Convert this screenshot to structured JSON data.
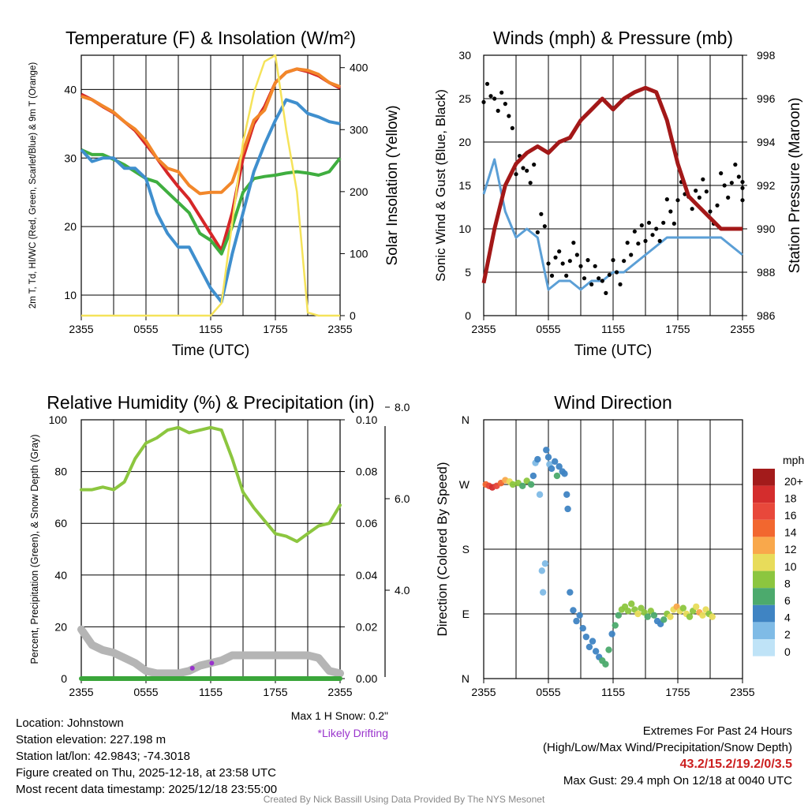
{
  "colors": {
    "temperature": "#d62728",
    "dewpoint": "#3fae3f",
    "windchill": "#3f8fce",
    "t9m": "#f2872a",
    "insolation": "#f5e35a",
    "wind": "#5b9fd6",
    "gust": "#000000",
    "pressure": "#a31818",
    "rh": "#8cc63f",
    "precip": "#3aa63a",
    "snow": "#b5b5b5",
    "drift": "#9933cc"
  },
  "x_ticks": [
    "2355",
    "0555",
    "1155",
    "1755",
    "2355"
  ],
  "chart_data": [
    {
      "id": "temp",
      "type": "line",
      "title": "Temperature (F) & Insolation (W/m²)",
      "xlabel": "Time (UTC)",
      "ylabel": "2m T, Td, HI/WC (Red, Green, Scarlet/Blue) & 9m T (Orange)",
      "ylabel2": "Solar Insolation (Yellow)",
      "x_ticks": [
        "2355",
        "0555",
        "1155",
        "1755",
        "2355"
      ],
      "ylim": [
        7,
        45
      ],
      "y_ticks": [
        10,
        20,
        30,
        40
      ],
      "y2lim": [
        0,
        420
      ],
      "y2_ticks": [
        0,
        100,
        200,
        300,
        400
      ],
      "x_hours": [
        0,
        1,
        2,
        3,
        4,
        5,
        6,
        7,
        8,
        9,
        10,
        11,
        12,
        13,
        14,
        15,
        16,
        17,
        18,
        19,
        20,
        21,
        22,
        23,
        24
      ],
      "series": [
        {
          "name": "2m Temperature",
          "color": "#d62728",
          "axis": "left",
          "width": 4,
          "values": [
            39.3,
            38.5,
            37.5,
            36.6,
            35.3,
            34.0,
            32.0,
            30.0,
            27.8,
            25.8,
            24.0,
            21.5,
            19.0,
            16.5,
            22.0,
            30.0,
            35.0,
            37.5,
            41.0,
            42.5,
            43.0,
            42.6,
            42.0,
            41.0,
            40.2
          ]
        },
        {
          "name": "9m Temperature",
          "color": "#f2872a",
          "axis": "left",
          "width": 4,
          "values": [
            39.0,
            38.5,
            37.6,
            36.7,
            35.3,
            34.2,
            32.5,
            30.0,
            28.5,
            28.0,
            26.0,
            24.8,
            25.0,
            25.0,
            26.5,
            31.0,
            35.5,
            37.0,
            41.0,
            42.5,
            43.0,
            42.8,
            42.2,
            41.0,
            40.4
          ]
        },
        {
          "name": "Dewpoint",
          "color": "#3fae3f",
          "axis": "left",
          "width": 4,
          "values": [
            31.2,
            30.5,
            30.5,
            29.8,
            29.0,
            28.0,
            27.0,
            26.5,
            25.0,
            23.5,
            22.0,
            19.0,
            18.0,
            16.0,
            20.0,
            25.0,
            27.0,
            27.3,
            27.5,
            27.8,
            28.0,
            27.8,
            27.5,
            28.0,
            30.0
          ]
        },
        {
          "name": "HI/WC",
          "color": "#3f8fce",
          "axis": "left",
          "width": 4,
          "values": [
            31.2,
            29.5,
            30.0,
            30.0,
            28.5,
            28.5,
            27.0,
            22.0,
            19.0,
            17.0,
            17.0,
            14.0,
            11.0,
            9.0,
            16.0,
            22.0,
            28.0,
            32.0,
            35.5,
            38.5,
            38.0,
            36.5,
            36.0,
            35.3,
            35.0
          ]
        },
        {
          "name": "Solar Insolation",
          "color": "#f5e35a",
          "axis": "right",
          "width": 2.5,
          "values": [
            0,
            0,
            0,
            0,
            0,
            0,
            0,
            0,
            0,
            0,
            0,
            0,
            0,
            20,
            150,
            280,
            360,
            410,
            420,
            300,
            200,
            5,
            0,
            0,
            0
          ]
        }
      ]
    },
    {
      "id": "wind",
      "type": "line",
      "title": "Winds (mph) & Pressure (mb)",
      "xlabel": "Time (UTC)",
      "ylabel": "Sonic Wind & Gust (Blue, Black)",
      "ylabel2": "Station Pressure (Maroon)",
      "x_ticks": [
        "2355",
        "0555",
        "1155",
        "1755",
        "2355"
      ],
      "ylim": [
        0,
        30
      ],
      "y_ticks": [
        0,
        5,
        10,
        15,
        20,
        25,
        30
      ],
      "y2lim": [
        986,
        998
      ],
      "y2_ticks": [
        986,
        988,
        990,
        992,
        994,
        996,
        998
      ],
      "x_hours": [
        0,
        1,
        2,
        3,
        4,
        5,
        6,
        7,
        8,
        9,
        10,
        11,
        12,
        13,
        14,
        15,
        16,
        17,
        18,
        19,
        20,
        21,
        22,
        23,
        24
      ],
      "series": [
        {
          "name": "Sonic Wind",
          "color": "#5b9fd6",
          "axis": "left",
          "width": 3,
          "values": [
            14,
            18,
            12,
            9,
            10,
            9,
            3,
            4,
            4,
            3,
            4,
            4,
            5,
            5,
            6,
            7,
            8,
            9,
            9,
            9,
            9,
            9,
            9,
            8,
            7
          ]
        },
        {
          "name": "Gust",
          "color": "#000000",
          "axis": "left",
          "type": "scatter",
          "values": [
            26,
            25,
            23,
            17,
            16,
            11,
            6,
            6,
            7,
            5,
            5,
            4,
            5,
            7,
            9,
            10,
            10,
            12,
            14,
            13,
            15,
            12,
            15,
            16,
            14
          ]
        },
        {
          "name": "Station Pressure",
          "color": "#a31818",
          "axis": "right",
          "width": 5,
          "values": [
            987.5,
            990.0,
            992.0,
            993.0,
            993.5,
            993.8,
            993.5,
            994.0,
            994.2,
            995.0,
            995.5,
            996.0,
            995.5,
            996.0,
            996.3,
            996.5,
            996.3,
            995.0,
            993.0,
            991.5,
            991.0,
            990.5,
            990.0,
            990.0,
            990.0
          ]
        }
      ]
    },
    {
      "id": "rh",
      "type": "line",
      "title": "Relative Humidity (%) & Precipitation (in)",
      "ylabel": "Percent, Precipitation (Green), & Snow Depth (Gray)",
      "x_ticks": [
        "2355",
        "0555",
        "1155",
        "1755",
        "2355"
      ],
      "ylim": [
        0,
        100
      ],
      "y_ticks": [
        0,
        20,
        40,
        60,
        80,
        100
      ],
      "y2lim": [
        0,
        0.1
      ],
      "y2_ticks": [
        0.0,
        0.02,
        0.04,
        0.06,
        0.08,
        0.1
      ],
      "y3_ticks": [
        "4.0",
        "6.0",
        "8.0"
      ],
      "x_hours": [
        0,
        1,
        2,
        3,
        4,
        5,
        6,
        7,
        8,
        9,
        10,
        11,
        12,
        13,
        14,
        15,
        16,
        17,
        18,
        19,
        20,
        21,
        22,
        23,
        24
      ],
      "series": [
        {
          "name": "Relative Humidity",
          "color": "#8cc63f",
          "axis": "left",
          "width": 4,
          "values": [
            73,
            73,
            74,
            73,
            76,
            85,
            91,
            93,
            96,
            97,
            95,
            96,
            97,
            96,
            85,
            72,
            66,
            61,
            56,
            55,
            53,
            56,
            59,
            60,
            67
          ]
        },
        {
          "name": "Precipitation",
          "color": "#3aa63a",
          "axis": "right",
          "width": 6,
          "values": [
            0,
            0,
            0,
            0,
            0,
            0,
            0,
            0,
            0,
            0,
            0,
            0,
            0,
            0,
            0,
            0,
            0,
            0,
            0,
            0,
            0,
            0,
            0,
            0,
            0
          ]
        },
        {
          "name": "Snow Depth",
          "color": "#b5b5b5",
          "axis": "left",
          "width": 10,
          "values": [
            19,
            13,
            11,
            10,
            8,
            6,
            3,
            2,
            2,
            2,
            3,
            5,
            6,
            7,
            9,
            9,
            9,
            9,
            9,
            9,
            9,
            9,
            8,
            3,
            2
          ]
        }
      ],
      "drifting_points": [
        {
          "hour": 10.3,
          "value": 4
        },
        {
          "hour": 12.1,
          "value": 6
        }
      ]
    },
    {
      "id": "dir",
      "type": "scatter",
      "title": "Wind Direction",
      "ylabel": "Direction (Colored By Speed)",
      "x_ticks": [
        "2355",
        "0555",
        "1155",
        "1755",
        "2355"
      ],
      "y_ticks": [
        "N",
        "E",
        "S",
        "W",
        "N"
      ],
      "legend_title": "mph",
      "legend_labels": [
        "20+",
        "18",
        "16",
        "14",
        "12",
        "10",
        "8",
        "6",
        "4",
        "2",
        "0"
      ],
      "legend_colors": [
        "#a31b1b",
        "#d42d2d",
        "#e8483b",
        "#f2672f",
        "#f9a84b",
        "#e8dc5a",
        "#8cc63f",
        "#4caa6d",
        "#3f84c3",
        "#7fbbe6",
        "#bfe3f7"
      ],
      "points": [
        {
          "h": 0.2,
          "d": 270,
          "s": 14
        },
        {
          "h": 0.5,
          "d": 268,
          "s": 16
        },
        {
          "h": 0.8,
          "d": 266,
          "s": 17
        },
        {
          "h": 1.2,
          "d": 268,
          "s": 15
        },
        {
          "h": 1.6,
          "d": 272,
          "s": 13
        },
        {
          "h": 2.0,
          "d": 276,
          "s": 11
        },
        {
          "h": 2.4,
          "d": 274,
          "s": 10
        },
        {
          "h": 2.7,
          "d": 270,
          "s": 7
        },
        {
          "h": 3.2,
          "d": 272,
          "s": 7
        },
        {
          "h": 3.6,
          "d": 268,
          "s": 5
        },
        {
          "h": 4.0,
          "d": 275,
          "s": 8
        },
        {
          "h": 4.4,
          "d": 270,
          "s": 5
        },
        {
          "h": 4.6,
          "d": 282,
          "s": 3
        },
        {
          "h": 4.8,
          "d": 300,
          "s": 2
        },
        {
          "h": 5.0,
          "d": 305,
          "s": 3
        },
        {
          "h": 5.2,
          "d": 256,
          "s": 2
        },
        {
          "h": 5.4,
          "d": 150,
          "s": 2
        },
        {
          "h": 5.5,
          "d": 120,
          "s": 2
        },
        {
          "h": 5.7,
          "d": 160,
          "s": 2
        },
        {
          "h": 5.8,
          "d": 318,
          "s": 4
        },
        {
          "h": 6.0,
          "d": 308,
          "s": 3
        },
        {
          "h": 6.1,
          "d": 298,
          "s": 2
        },
        {
          "h": 6.3,
          "d": 292,
          "s": 4
        },
        {
          "h": 6.6,
          "d": 302,
          "s": 3
        },
        {
          "h": 6.8,
          "d": 282,
          "s": 5
        },
        {
          "h": 7.0,
          "d": 295,
          "s": 4
        },
        {
          "h": 7.3,
          "d": 288,
          "s": 4
        },
        {
          "h": 7.5,
          "d": 285,
          "s": 4
        },
        {
          "h": 7.7,
          "d": 256,
          "s": 3
        },
        {
          "h": 7.8,
          "d": 236,
          "s": 4
        },
        {
          "h": 8.0,
          "d": 120,
          "s": 3
        },
        {
          "h": 8.3,
          "d": 95,
          "s": 4
        },
        {
          "h": 8.6,
          "d": 80,
          "s": 4
        },
        {
          "h": 8.9,
          "d": 88,
          "s": 3
        },
        {
          "h": 9.2,
          "d": 70,
          "s": 4
        },
        {
          "h": 9.5,
          "d": 58,
          "s": 4
        },
        {
          "h": 9.8,
          "d": 44,
          "s": 3
        },
        {
          "h": 10.1,
          "d": 52,
          "s": 3
        },
        {
          "h": 10.4,
          "d": 38,
          "s": 3
        },
        {
          "h": 10.7,
          "d": 30,
          "s": 4
        },
        {
          "h": 11.0,
          "d": 25,
          "s": 5
        },
        {
          "h": 11.3,
          "d": 20,
          "s": 6
        },
        {
          "h": 11.6,
          "d": 40,
          "s": 5
        },
        {
          "h": 11.9,
          "d": 62,
          "s": 4
        },
        {
          "h": 12.2,
          "d": 74,
          "s": 5
        },
        {
          "h": 12.5,
          "d": 88,
          "s": 6
        },
        {
          "h": 12.8,
          "d": 96,
          "s": 7
        },
        {
          "h": 13.1,
          "d": 100,
          "s": 8
        },
        {
          "h": 13.4,
          "d": 94,
          "s": 7
        },
        {
          "h": 13.7,
          "d": 104,
          "s": 8
        },
        {
          "h": 14.0,
          "d": 96,
          "s": 7
        },
        {
          "h": 14.3,
          "d": 90,
          "s": 9
        },
        {
          "h": 14.6,
          "d": 98,
          "s": 8
        },
        {
          "h": 14.9,
          "d": 92,
          "s": 7
        },
        {
          "h": 15.2,
          "d": 86,
          "s": 6
        },
        {
          "h": 15.5,
          "d": 94,
          "s": 8
        },
        {
          "h": 15.8,
          "d": 88,
          "s": 5
        },
        {
          "h": 16.1,
          "d": 80,
          "s": 4
        },
        {
          "h": 16.4,
          "d": 76,
          "s": 4
        },
        {
          "h": 16.7,
          "d": 82,
          "s": 6
        },
        {
          "h": 17.0,
          "d": 90,
          "s": 7
        },
        {
          "h": 17.3,
          "d": 86,
          "s": 9
        },
        {
          "h": 17.6,
          "d": 96,
          "s": 10
        },
        {
          "h": 17.9,
          "d": 100,
          "s": 11
        },
        {
          "h": 18.2,
          "d": 94,
          "s": 10
        },
        {
          "h": 18.5,
          "d": 98,
          "s": 8
        },
        {
          "h": 18.8,
          "d": 90,
          "s": 9
        },
        {
          "h": 19.1,
          "d": 86,
          "s": 7
        },
        {
          "h": 19.4,
          "d": 94,
          "s": 8
        },
        {
          "h": 19.7,
          "d": 100,
          "s": 10
        },
        {
          "h": 20.0,
          "d": 92,
          "s": 11
        },
        {
          "h": 20.3,
          "d": 88,
          "s": 9
        },
        {
          "h": 20.6,
          "d": 96,
          "s": 10
        },
        {
          "h": 20.9,
          "d": 90,
          "s": 8
        },
        {
          "h": 21.2,
          "d": 86,
          "s": 9
        }
      ]
    }
  ],
  "snow_note": {
    "max_snow": "Max 1 H Snow: 0.2\"",
    "drifting": "*Likely Drifting"
  },
  "info_left": {
    "location": "Location: Johnstown",
    "elevation": "Station elevation: 227.198 m",
    "latlon": "Station lat/lon: 42.9843; -74.3018",
    "created": "Figure created on Thu, 2025-12-18, at 23:58 UTC",
    "recent": "Most recent data timestamp: 2025/12/18 23:55:00"
  },
  "info_right": {
    "heading": "Extremes For Past 24 Hours",
    "subheading": "(High/Low/Max Wind/Precipitation/Snow Depth)",
    "values": "43.2/15.2/19.2/0/3.5",
    "max_gust": "Max Gust: 29.4 mph On 12/18 at 0040 UTC"
  },
  "credit": "Created By Nick Bassill Using Data Provided By The NYS Mesonet"
}
